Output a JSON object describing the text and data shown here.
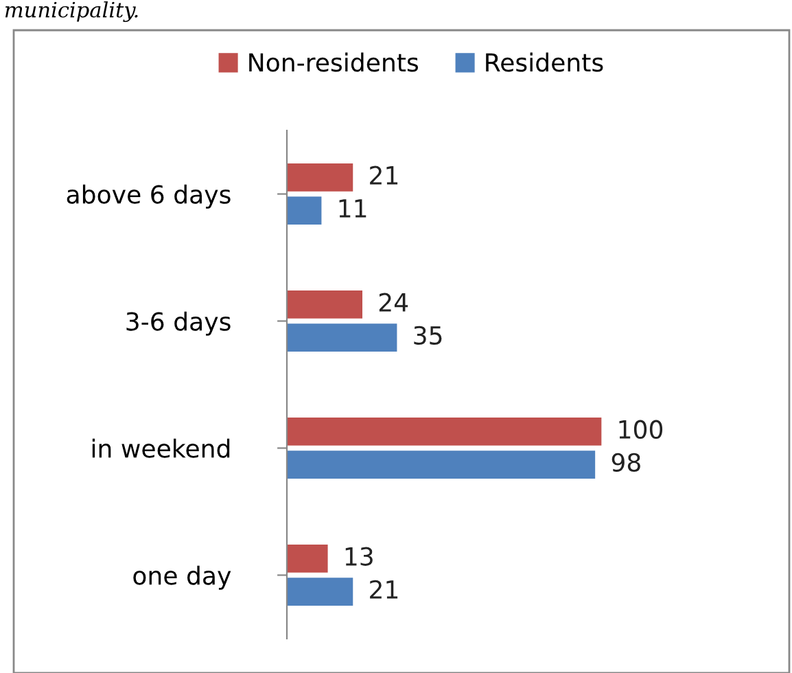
{
  "chart_data": {
    "type": "bar",
    "orientation": "horizontal",
    "categories": [
      "above 6 days",
      "3-6 days",
      "in weekend",
      "one day"
    ],
    "series": [
      {
        "name": "Non-residents",
        "color": "#c0504d",
        "values": [
          21,
          24,
          100,
          13
        ]
      },
      {
        "name": "Residents",
        "color": "#4f81bd",
        "values": [
          11,
          35,
          98,
          21
        ]
      }
    ],
    "data_labels": true,
    "legend": "top",
    "grid": false,
    "annotations": [
      "municipality."
    ]
  }
}
